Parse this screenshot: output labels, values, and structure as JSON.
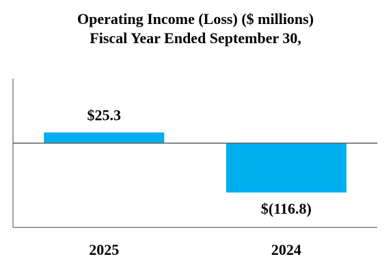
{
  "chart_data": {
    "type": "bar",
    "title": "Operating Income (Loss) ($ millions)",
    "subtitle": "Fiscal Year Ended September 30,",
    "categories": [
      "2025",
      "2024"
    ],
    "values": [
      25.3,
      -116.8
    ],
    "data_labels": [
      "$25.3",
      "$(116.8)"
    ],
    "xlabel": "",
    "ylabel": "",
    "bar_color": "#00aeef",
    "grid": false,
    "legend": "none"
  }
}
